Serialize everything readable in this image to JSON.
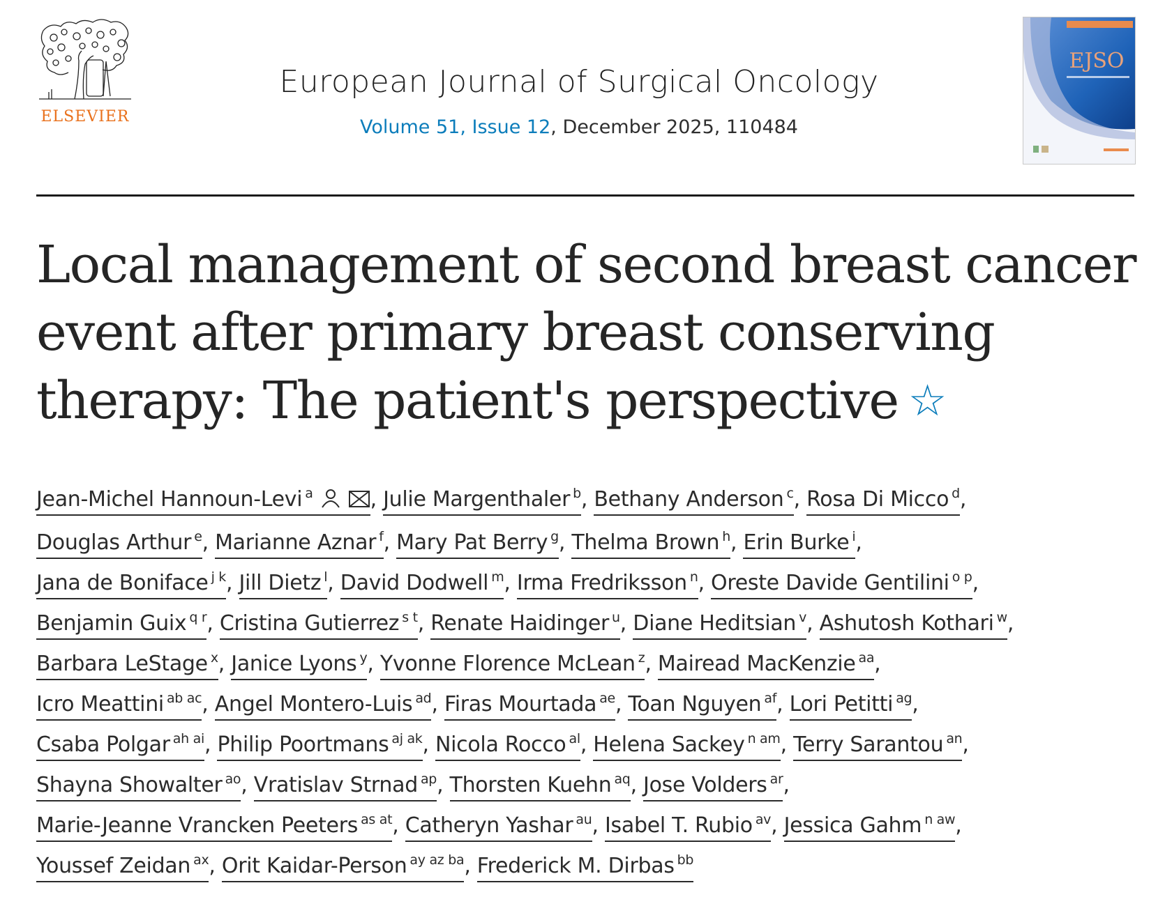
{
  "publisher": {
    "name": "ELSEVIER",
    "color": "#e9711c"
  },
  "journal": {
    "title": "European Journal of Surgical Oncology",
    "volume_link": "Volume 51, Issue 12",
    "details": ", December 2025, 110484",
    "link_color": "#0c7dbb"
  },
  "cover": {
    "label": "EJSO"
  },
  "article": {
    "title": "Local management of second breast cancer event after primary breast conserving therapy: The patient's perspective",
    "title_icon": "star-icon"
  },
  "authors": [
    {
      "name": "Jean-Michel Hannoun-Levi",
      "sup": "a",
      "icons": [
        "person-icon",
        "mail-icon"
      ]
    },
    {
      "name": "Julie Margenthaler",
      "sup": "b"
    },
    {
      "name": "Bethany Anderson",
      "sup": "c"
    },
    {
      "name": "Rosa Di Micco",
      "sup": "d"
    },
    {
      "name": "Douglas Arthur",
      "sup": "e"
    },
    {
      "name": "Marianne Aznar",
      "sup": "f"
    },
    {
      "name": "Mary Pat Berry",
      "sup": "g"
    },
    {
      "name": "Thelma Brown",
      "sup": "h"
    },
    {
      "name": "Erin Burke",
      "sup": "i"
    },
    {
      "name": "Jana de Boniface",
      "sup": "j k"
    },
    {
      "name": "Jill Dietz",
      "sup": "l"
    },
    {
      "name": "David Dodwell",
      "sup": "m"
    },
    {
      "name": "Irma Fredriksson",
      "sup": "n"
    },
    {
      "name": "Oreste Davide Gentilini",
      "sup": "o p"
    },
    {
      "name": "Benjamin Guix",
      "sup": "q r"
    },
    {
      "name": "Cristina Gutierrez",
      "sup": "s t"
    },
    {
      "name": "Renate Haidinger",
      "sup": "u"
    },
    {
      "name": "Diane Heditsian",
      "sup": "v"
    },
    {
      "name": "Ashutosh Kothari",
      "sup": "w"
    },
    {
      "name": "Barbara LeStage",
      "sup": "x"
    },
    {
      "name": "Janice Lyons",
      "sup": "y"
    },
    {
      "name": "Yvonne Florence McLean",
      "sup": "z"
    },
    {
      "name": "Mairead MacKenzie",
      "sup": "aa"
    },
    {
      "name": "Icro Meattini",
      "sup": "ab ac"
    },
    {
      "name": "Angel Montero-Luis",
      "sup": "ad"
    },
    {
      "name": "Firas Mourtada",
      "sup": "ae"
    },
    {
      "name": "Toan Nguyen",
      "sup": "af"
    },
    {
      "name": "Lori Petitti",
      "sup": "ag"
    },
    {
      "name": "Csaba Polgar",
      "sup": "ah ai"
    },
    {
      "name": "Philip Poortmans",
      "sup": "aj ak"
    },
    {
      "name": "Nicola Rocco",
      "sup": "al"
    },
    {
      "name": "Helena Sackey",
      "sup": "n am"
    },
    {
      "name": "Terry Sarantou",
      "sup": "an"
    },
    {
      "name": "Shayna Showalter",
      "sup": "ao"
    },
    {
      "name": "Vratislav Strnad",
      "sup": "ap"
    },
    {
      "name": "Thorsten Kuehn",
      "sup": "aq"
    },
    {
      "name": "Jose Volders",
      "sup": "ar"
    },
    {
      "name": "Marie-Jeanne Vrancken Peeters",
      "sup": "as at"
    },
    {
      "name": "Catheryn Yashar",
      "sup": "au"
    },
    {
      "name": "Isabel T. Rubio",
      "sup": "av"
    },
    {
      "name": "Jessica Gahm",
      "sup": "n aw"
    },
    {
      "name": "Youssef Zeidan",
      "sup": "ax"
    },
    {
      "name": "Orit Kaidar-Person",
      "sup": "ay az ba"
    },
    {
      "name": "Frederick M. Dirbas",
      "sup": "bb"
    }
  ],
  "author_line_breaks_after": [
    3,
    8,
    13,
    18,
    22,
    27,
    32,
    36,
    40
  ],
  "separator": ", "
}
